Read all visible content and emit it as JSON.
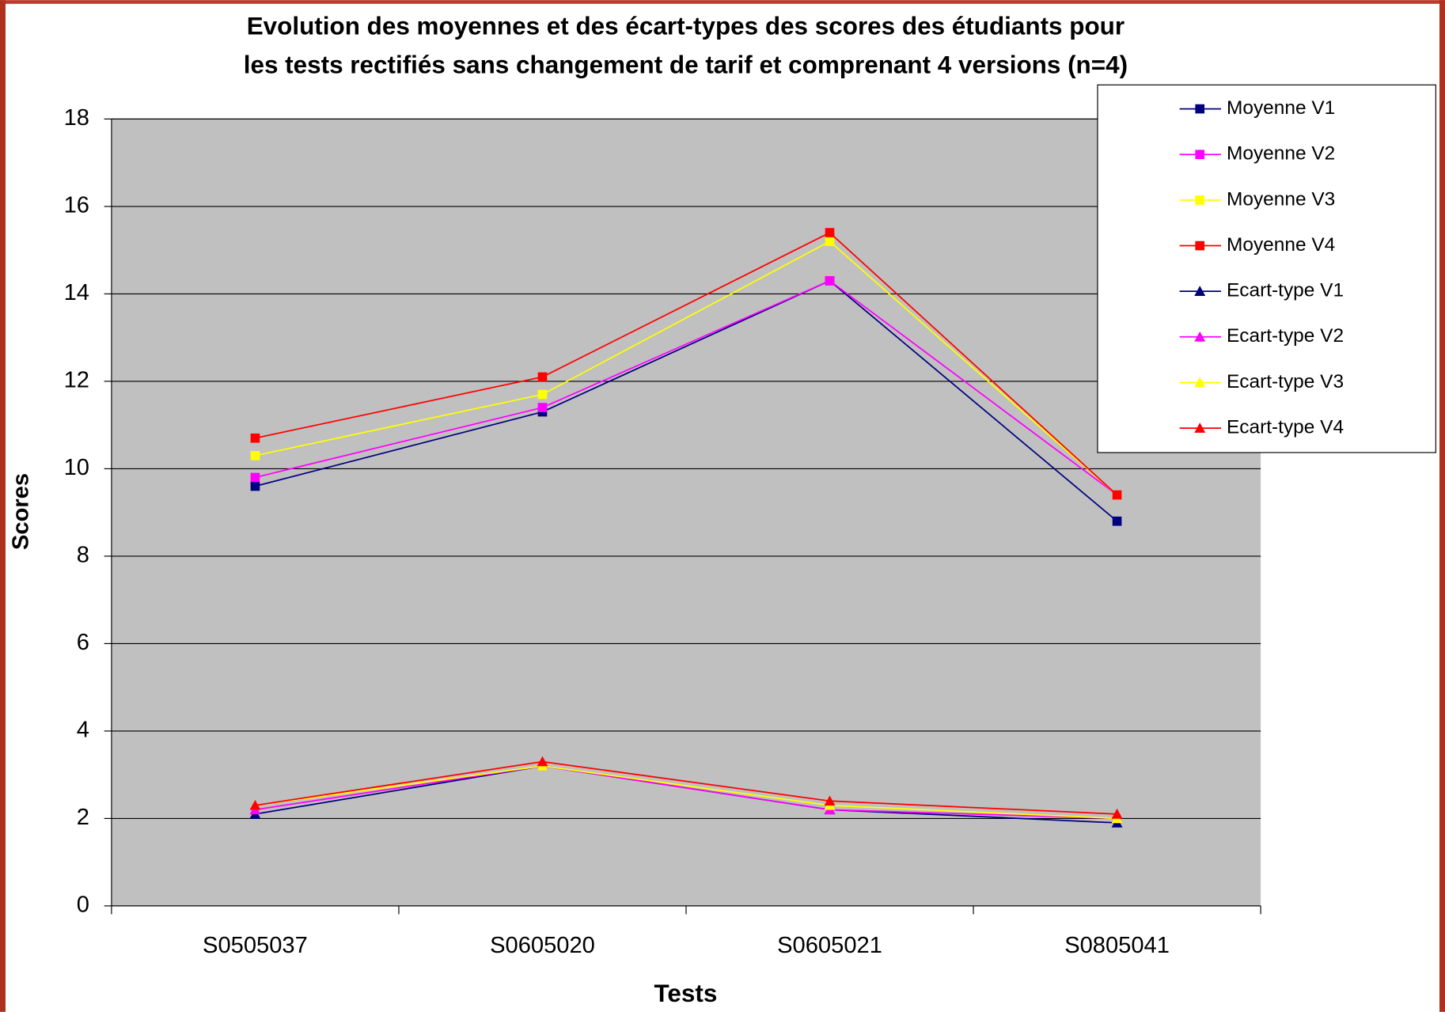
{
  "chart_data": {
    "type": "line",
    "title": [
      "Evolution des moyennes et des écart-types des scores des étudiants pour",
      "les tests rectifiés sans changement de tarif et comprenant 4 versions (n=4)"
    ],
    "x_label": "Tests",
    "y_label": "Scores",
    "categories": [
      "S0505037",
      "S0605020",
      "S0605021",
      "S0805041"
    ],
    "ylim": [
      0,
      18
    ],
    "yticks": [
      0,
      2,
      4,
      6,
      8,
      10,
      12,
      14,
      16,
      18
    ],
    "grid": true,
    "legend": "top-right",
    "series": [
      {
        "name": "Moyenne V1",
        "color": "#000080",
        "marker": "square",
        "values": [
          9.6,
          11.3,
          14.3,
          8.8
        ]
      },
      {
        "name": "Moyenne V2",
        "color": "#ff00ff",
        "marker": "square",
        "values": [
          9.8,
          11.4,
          14.3,
          9.4
        ]
      },
      {
        "name": "Moyenne V3",
        "color": "#ffff00",
        "marker": "square",
        "values": [
          10.3,
          11.7,
          15.2,
          9.4
        ]
      },
      {
        "name": "Moyenne V4",
        "color": "#ff0000",
        "marker": "square",
        "values": [
          10.7,
          12.1,
          15.4,
          9.4
        ]
      },
      {
        "name": "Ecart-type V1",
        "color": "#000080",
        "marker": "triangle",
        "values": [
          2.1,
          3.2,
          2.2,
          1.9
        ]
      },
      {
        "name": "Ecart-type V2",
        "color": "#ff00ff",
        "marker": "triangle",
        "values": [
          2.2,
          3.2,
          2.2,
          2.0
        ]
      },
      {
        "name": "Ecart-type V3",
        "color": "#ffff00",
        "marker": "triangle",
        "values": [
          2.3,
          3.2,
          2.3,
          2.0
        ]
      },
      {
        "name": "Ecart-type V4",
        "color": "#ff0000",
        "marker": "triangle",
        "values": [
          2.3,
          3.3,
          2.4,
          2.1
        ]
      }
    ]
  }
}
